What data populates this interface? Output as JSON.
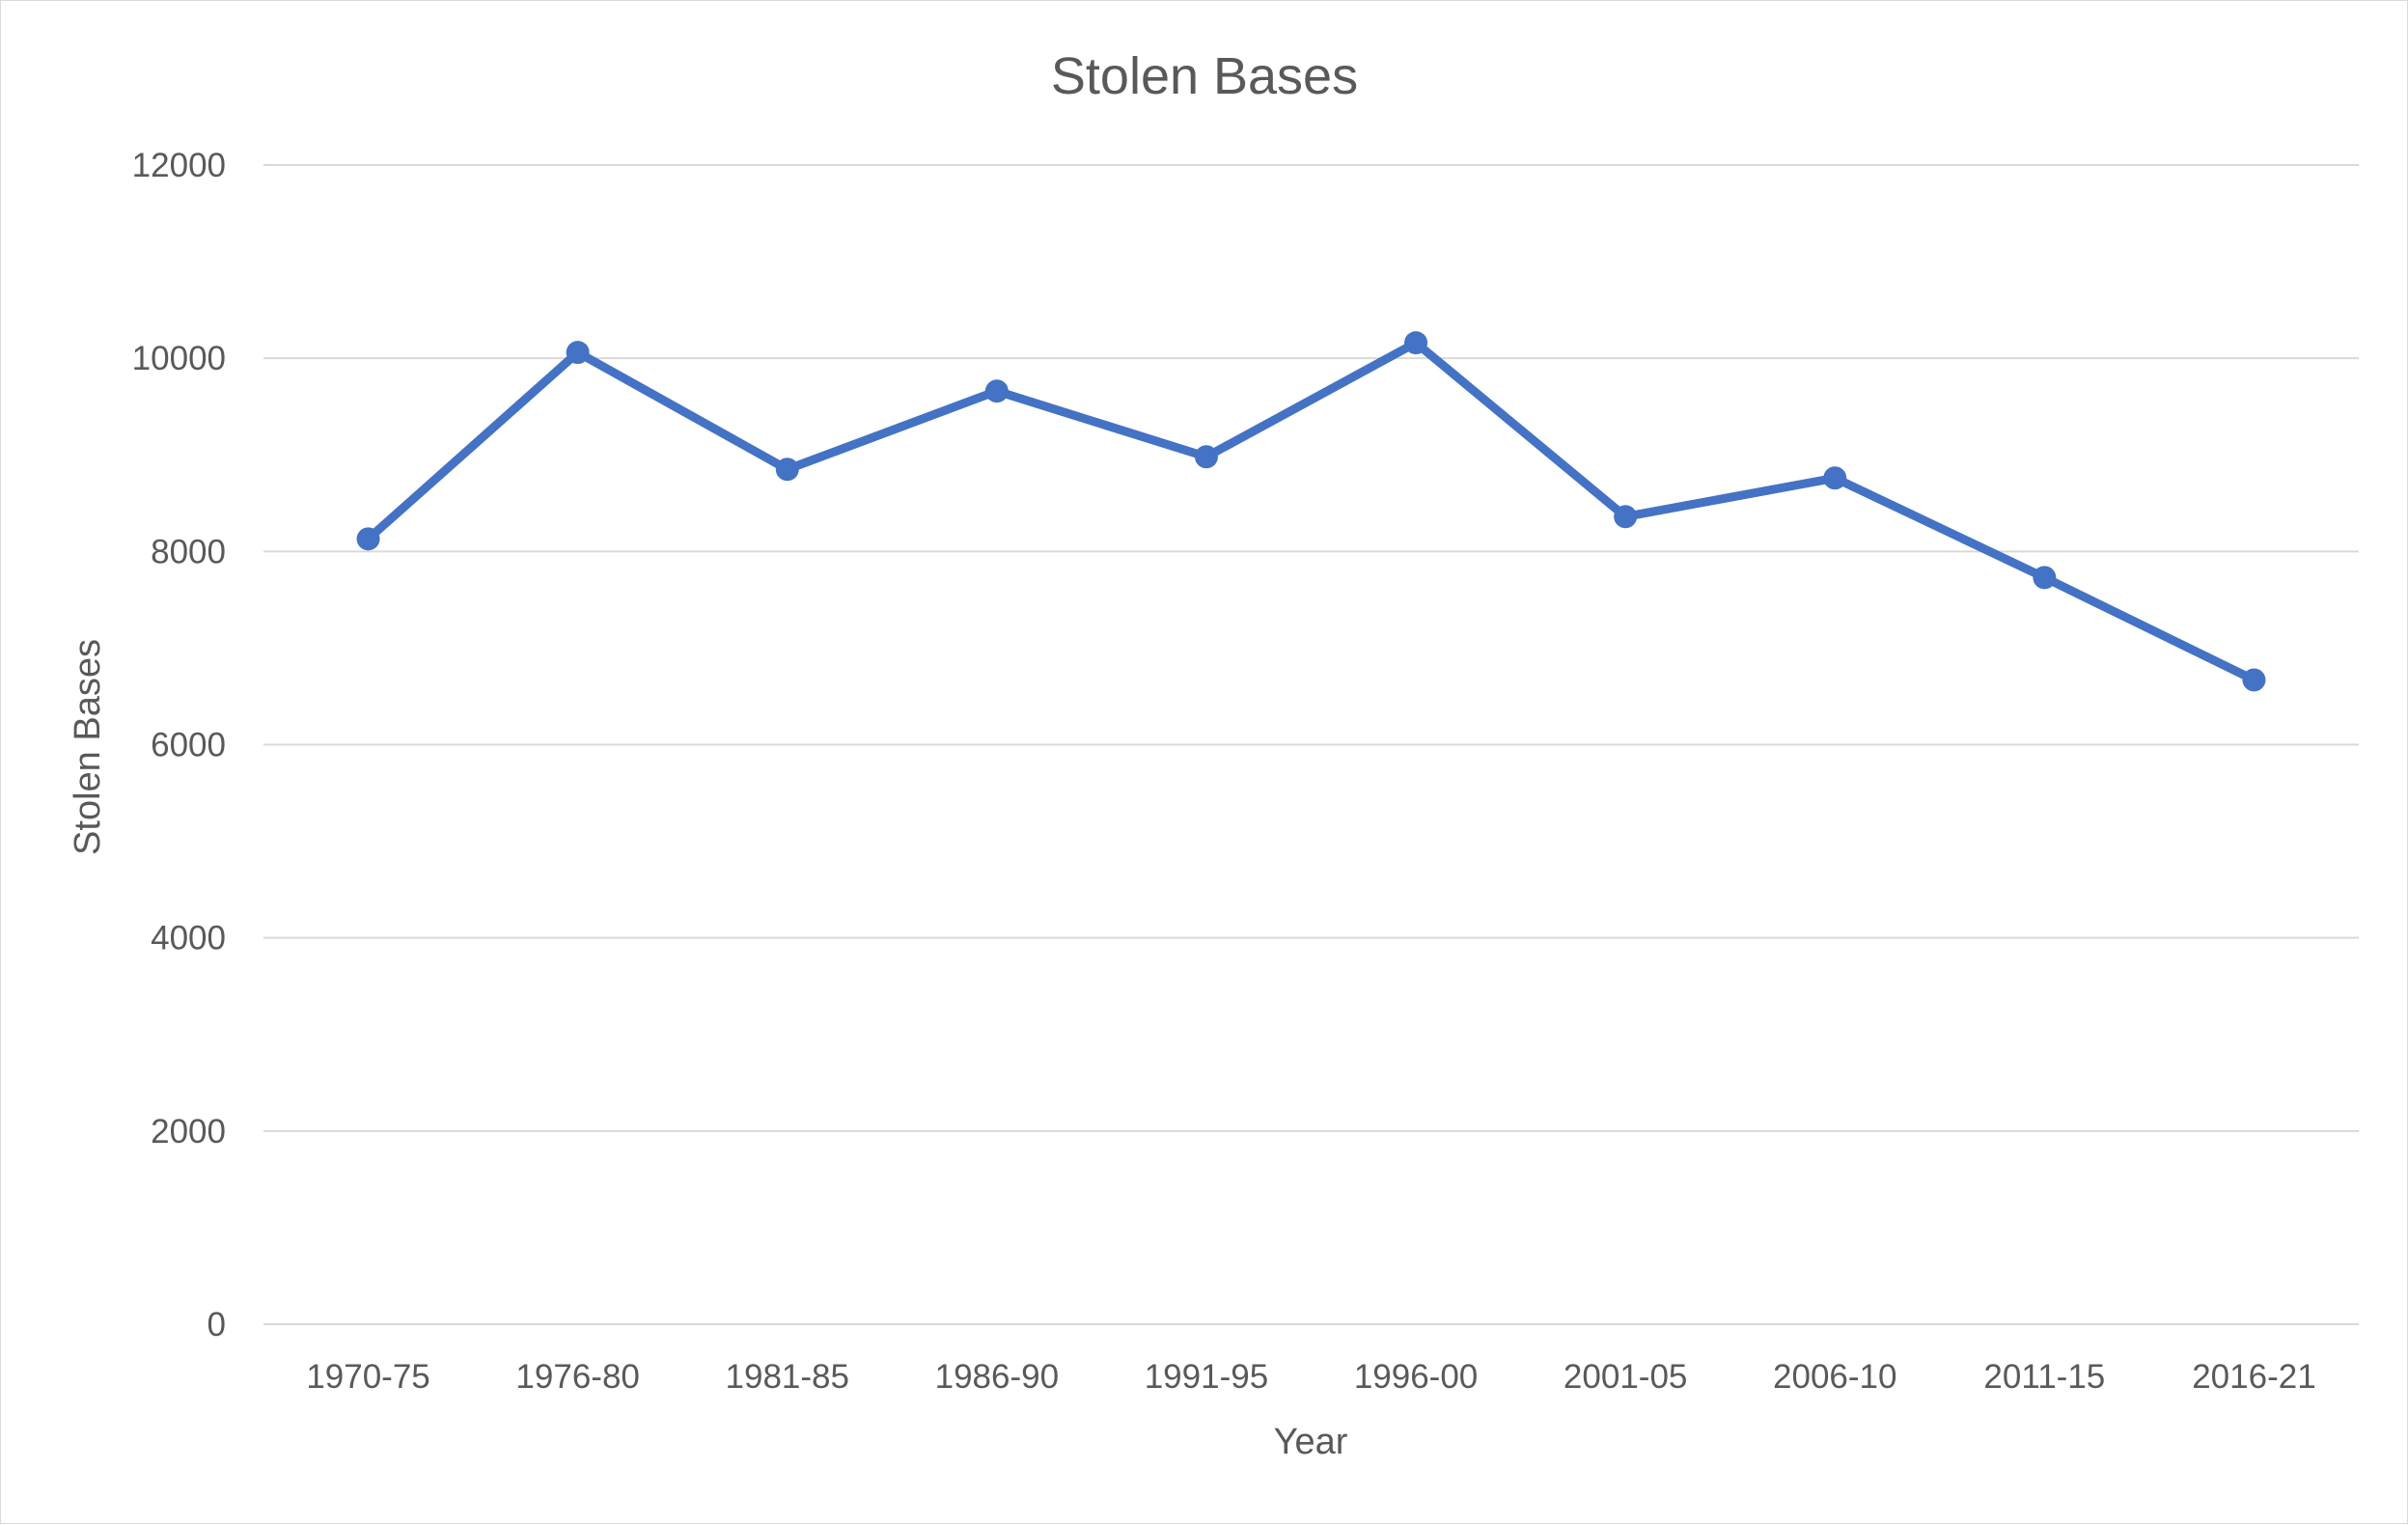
{
  "chart_data": {
    "type": "line",
    "title": "Stolen Bases",
    "xlabel": "Year",
    "ylabel": "Stolen Bases",
    "categories": [
      "1970-75",
      "1976-80",
      "1981-85",
      "1986-90",
      "1991-95",
      "1996-00",
      "2001-05",
      "2006-10",
      "2011-15",
      "2016-21"
    ],
    "series": [
      {
        "values": [
          8130,
          10060,
          8850,
          9660,
          8980,
          10160,
          8360,
          8760,
          7730,
          6670
        ],
        "color": "#4472c4"
      }
    ],
    "ylim": [
      0,
      12000
    ],
    "yticks": [
      0,
      2000,
      4000,
      6000,
      8000,
      10000,
      12000
    ],
    "grid": "horizontal",
    "legend": "none",
    "markers": true
  }
}
